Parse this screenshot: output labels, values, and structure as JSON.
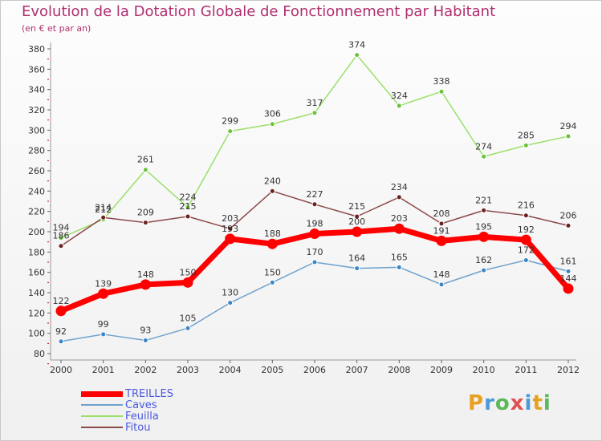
{
  "title": "Evolution de la Dotation Globale de Fonctionnement par Habitant",
  "subtitle": "(en € et par an)",
  "logo": {
    "text": "Proxiti",
    "letters": [
      "P",
      "r",
      "o",
      "x",
      "i",
      "t",
      "i"
    ],
    "colors": [
      "#e8a020",
      "#4a9ad8",
      "#5cb85c",
      "#e05050",
      "#4a9ad8",
      "#e8a020",
      "#5cb85c"
    ]
  },
  "chart_data": {
    "type": "line",
    "title": "Evolution de la Dotation Globale de Fonctionnement par Habitant",
    "subtitle": "(en € et par an)",
    "x": [
      "2000",
      "2001",
      "2002",
      "2003",
      "2004",
      "2005",
      "2006",
      "2007",
      "2008",
      "2009",
      "2010",
      "2011",
      "2012"
    ],
    "ylim": [
      80,
      380
    ],
    "yticks": [
      80,
      100,
      120,
      140,
      160,
      180,
      200,
      220,
      240,
      260,
      280,
      300,
      320,
      340,
      360,
      380
    ],
    "grid": false,
    "legend_position": "bottom-left",
    "series": [
      {
        "name": "Caves",
        "color": "#6fa2cd",
        "marker": "#3a85c6",
        "width": 1.5,
        "values": [
          92,
          99,
          93,
          105,
          130,
          150,
          170,
          164,
          165,
          148,
          162,
          172,
          161
        ]
      },
      {
        "name": "Feuilla",
        "color": "#9be06a",
        "marker": "#6cc23a",
        "width": 1.5,
        "values": [
          194,
          212,
          261,
          224,
          299,
          306,
          317,
          374,
          324,
          338,
          274,
          285,
          294
        ]
      },
      {
        "name": "Fitou",
        "color": "#8b4a4a",
        "marker": "#6b1f1f",
        "width": 1.5,
        "values": [
          186,
          214,
          209,
          215,
          203,
          240,
          227,
          215,
          234,
          208,
          221,
          216,
          206
        ]
      },
      {
        "name": "TREILLES",
        "color": "#ff0000",
        "marker": "#ff0000",
        "width": 7,
        "values": [
          122,
          139,
          148,
          150,
          193,
          188,
          198,
          200,
          203,
          191,
          195,
          192,
          144
        ]
      }
    ]
  },
  "legend": [
    {
      "name": "TREILLES",
      "color": "#ff0000",
      "thickness": 7,
      "text_color": "#4a5ae0"
    },
    {
      "name": "Caves",
      "color": "#6fa2cd",
      "thickness": 2,
      "text_color": "#4a5ae0"
    },
    {
      "name": "Feuilla",
      "color": "#9be06a",
      "thickness": 2,
      "text_color": "#4a5ae0"
    },
    {
      "name": "Fitou",
      "color": "#8b4a4a",
      "thickness": 2,
      "text_color": "#4a5ae0"
    }
  ]
}
